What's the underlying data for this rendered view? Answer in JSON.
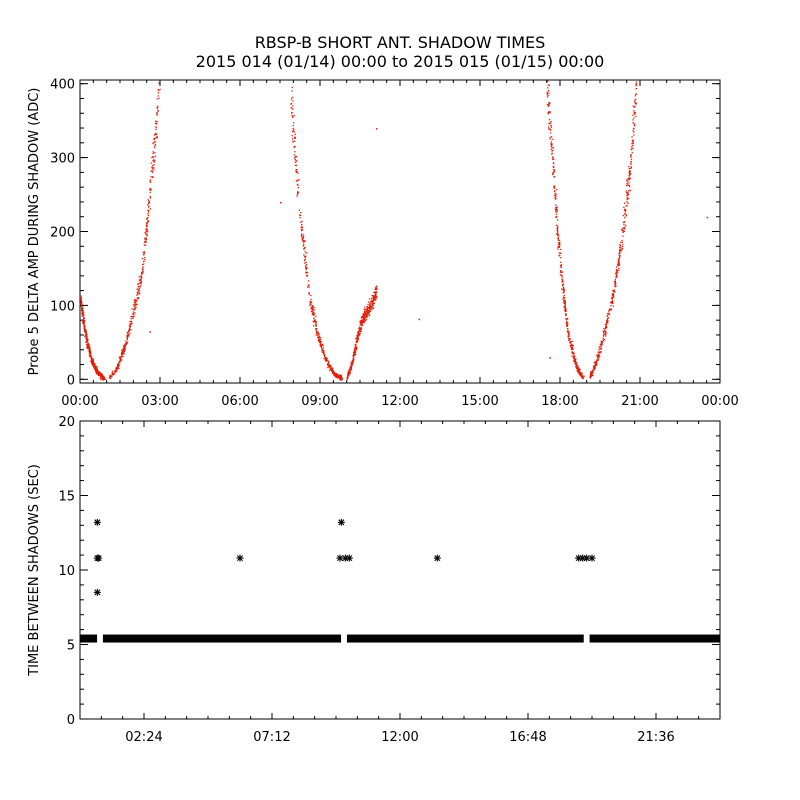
{
  "title": {
    "line1": "RBSP-B SHORT ANT. SHADOW TIMES",
    "line2": "2015 014 (01/14) 00:00 to 2015 015 (01/15) 00:00"
  },
  "chart_data": [
    {
      "type": "scatter",
      "ylabel": "Probe 5 DELTA AMP DURING SHADOW (ADC)",
      "xlim": [
        0,
        24
      ],
      "ylim": [
        -5,
        405
      ],
      "x_ticks": [
        0,
        3,
        6,
        9,
        12,
        15,
        18,
        21,
        24
      ],
      "x_tick_labels": [
        "00:00",
        "03:00",
        "06:00",
        "09:00",
        "12:00",
        "15:00",
        "18:00",
        "21:00",
        "00:00"
      ],
      "y_ticks": [
        0,
        100,
        200,
        300,
        400
      ],
      "y_tick_labels": [
        "0",
        "100",
        "200",
        "300",
        "400"
      ],
      "marker_color": "#e0200a",
      "series": [
        {
          "shadow_episodes": [
            {
              "x": [
                0.0,
                0.2,
                0.4,
                0.6,
                0.8,
                0.9
              ],
              "y": [
                110,
                60,
                28,
                12,
                4,
                2
              ]
            },
            {
              "x": [
                1.1,
                1.4,
                1.7,
                2.0,
                2.3,
                2.6,
                2.8,
                2.95
              ],
              "y": [
                3,
                18,
                50,
                95,
                140,
                250,
                330,
                400
              ]
            },
            {
              "x": [
                7.9,
                8.1,
                8.3,
                8.6,
                8.9,
                9.2,
                9.5,
                9.8
              ],
              "y": [
                380,
                280,
                200,
                110,
                60,
                28,
                8,
                2
              ]
            },
            {
              "x": [
                10.0,
                10.2,
                10.4,
                10.6,
                10.8,
                11.0,
                11.1
              ],
              "y": [
                3,
                25,
                60,
                85,
                95,
                110,
                120
              ]
            },
            {
              "x": [
                17.5,
                17.7,
                17.9,
                18.1,
                18.3,
                18.6,
                18.85
              ],
              "y": [
                400,
                300,
                200,
                120,
                60,
                18,
                2
              ]
            },
            {
              "x": [
                19.1,
                19.4,
                19.7,
                20.0,
                20.3,
                20.6,
                20.85
              ],
              "y": [
                3,
                30,
                70,
                120,
                190,
                280,
                400
              ]
            }
          ],
          "isolated_points": [
            {
              "x": 2.6,
              "y": 65
            },
            {
              "x": 7.5,
              "y": 240
            },
            {
              "x": 11.1,
              "y": 340
            },
            {
              "x": 12.7,
              "y": 82
            },
            {
              "x": 17.6,
              "y": 30
            },
            {
              "x": 23.5,
              "y": 220
            }
          ]
        }
      ]
    },
    {
      "type": "scatter",
      "ylabel": "TIME BETWEEN SHADOWS (SEC)",
      "xlim": [
        0,
        24
      ],
      "ylim": [
        0,
        20
      ],
      "x_ticks": [
        2.4,
        7.2,
        12.0,
        16.8,
        21.6
      ],
      "x_tick_labels": [
        "02:24",
        "07:12",
        "12:00",
        "16:48",
        "21:36"
      ],
      "y_ticks": [
        0,
        5,
        10,
        15,
        20
      ],
      "y_tick_labels": [
        "0",
        "5",
        "10",
        "15",
        "20"
      ],
      "marker": "asterisk",
      "marker_color": "#000000",
      "series": [
        {
          "baseline": {
            "x_start": 0.0,
            "x_end": 24.0,
            "y": 5.4,
            "gaps_at": [
              0.75,
              9.9,
              19.0
            ]
          },
          "points": [
            {
              "x": 0.65,
              "y": 13.2
            },
            {
              "x": 0.65,
              "y": 10.8
            },
            {
              "x": 0.7,
              "y": 10.8
            },
            {
              "x": 0.65,
              "y": 8.5
            },
            {
              "x": 6.0,
              "y": 10.8
            },
            {
              "x": 9.8,
              "y": 13.2
            },
            {
              "x": 9.75,
              "y": 10.8
            },
            {
              "x": 9.95,
              "y": 10.8
            },
            {
              "x": 10.1,
              "y": 10.8
            },
            {
              "x": 13.4,
              "y": 10.8
            },
            {
              "x": 18.7,
              "y": 10.8
            },
            {
              "x": 18.85,
              "y": 10.8
            },
            {
              "x": 19.0,
              "y": 10.8
            },
            {
              "x": 19.2,
              "y": 10.8
            }
          ]
        }
      ]
    }
  ]
}
